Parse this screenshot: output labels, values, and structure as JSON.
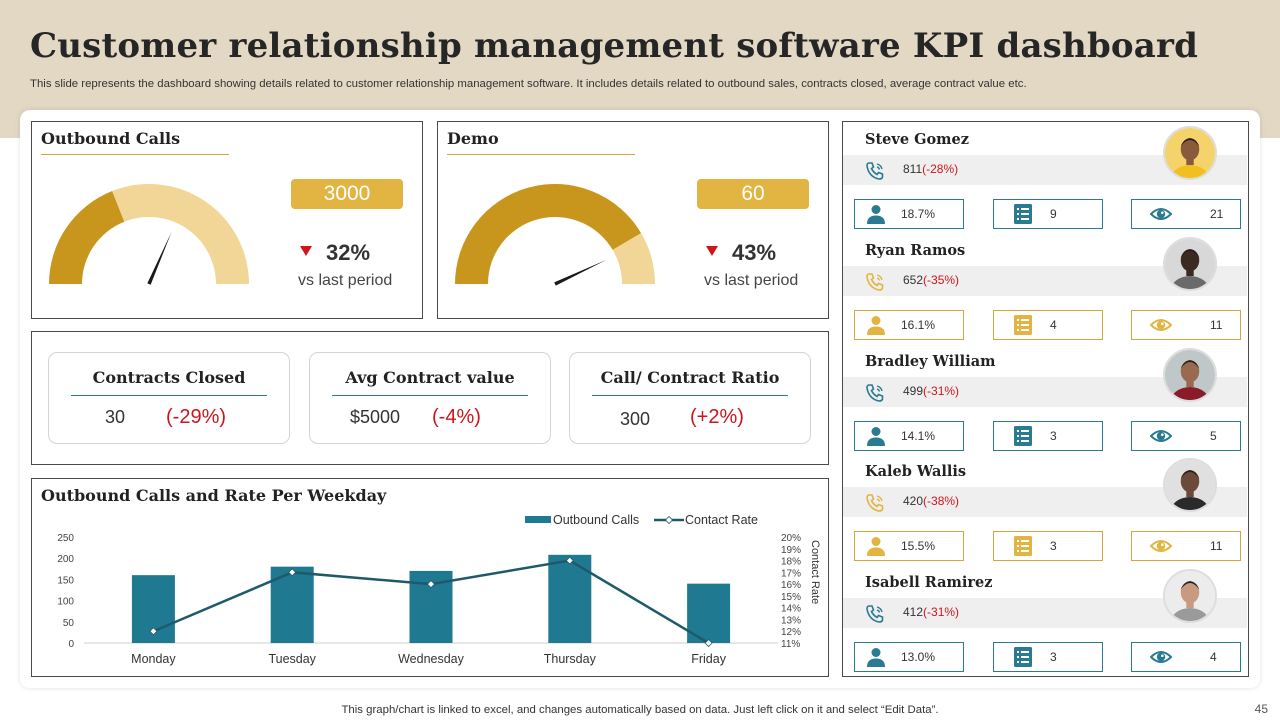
{
  "header": {
    "title": "Customer relationship management software KPI dashboard",
    "subtitle": "This slide represents the dashboard showing details related to customer relationship management software. It includes details related to outbound sales, contracts closed, average contract value etc."
  },
  "gauges": [
    {
      "title": "Outbound Calls",
      "value": "3000",
      "delta": "32%",
      "vs": "vs last period",
      "filled_fraction": 0.38,
      "needle_fraction": 0.63
    },
    {
      "title": "Demo",
      "value": "60",
      "delta": "43%",
      "vs": "vs last period",
      "filled_fraction": 0.83,
      "needle_fraction": 0.86
    }
  ],
  "kpis": [
    {
      "label": "Contracts Closed",
      "value": "30",
      "change": "(-29%)"
    },
    {
      "label": "Avg Contract value",
      "value": "$5000",
      "change": "(-4%)"
    },
    {
      "label": "Call/ Contract Ratio",
      "value": "300",
      "change": "(+2%)"
    }
  ],
  "chart_data": {
    "type": "bar",
    "title": "Outbound Calls and Rate Per Weekday",
    "categories": [
      "Monday",
      "Tuesday",
      "Wednesday",
      "Thursday",
      "Friday"
    ],
    "series": [
      {
        "name": "Outbound Calls",
        "kind": "bar",
        "axis": "left",
        "color": "#1f7a91",
        "values": [
          160,
          180,
          170,
          208,
          140
        ]
      },
      {
        "name": "Contact Rate",
        "kind": "line",
        "axis": "right",
        "color": "#1f5a6b",
        "values": [
          12,
          17,
          16,
          18,
          11
        ]
      }
    ],
    "ylim": [
      0,
      250
    ],
    "yticks": [
      "0",
      "50",
      "100",
      "150",
      "200",
      "250"
    ],
    "y2lim": [
      11,
      20
    ],
    "y2ticks": [
      "11%",
      "12%",
      "13%",
      "14%",
      "15%",
      "16%",
      "17%",
      "18%",
      "19%",
      "20%"
    ],
    "y2label": "Contact Rate",
    "legend_position": "top-right"
  },
  "people": [
    {
      "name": "Steve Gomez",
      "calls": "811",
      "calls_change": "(-28%)",
      "theme": "#2a7a92",
      "stat1": "18.7%",
      "stat2": "9",
      "stat3": "21",
      "avatar_bg": "#f4d36b",
      "avatar_skin": "#8a5a3c",
      "avatar_shirt": "#f0c020"
    },
    {
      "name": "Ryan Ramos",
      "calls": "652",
      "calls_change": "(-35%)",
      "theme": "#e2b441",
      "stat1": "16.1%",
      "stat2": "4",
      "stat3": "11",
      "avatar_bg": "#d8d8d8",
      "avatar_skin": "#3b2a22",
      "avatar_shirt": "#6a6a6a"
    },
    {
      "name": "Bradley William",
      "calls": "499",
      "calls_change": "(-31%)",
      "theme": "#2a7a92",
      "stat1": "14.1%",
      "stat2": "3",
      "stat3": "5",
      "avatar_bg": "#bfc7c9",
      "avatar_skin": "#9a6a50",
      "avatar_shirt": "#8a1c2a"
    },
    {
      "name": "Kaleb Wallis",
      "calls": "420",
      "calls_change": "(-38%)",
      "theme": "#e2b441",
      "stat1": "15.5%",
      "stat2": "3",
      "stat3": "11",
      "avatar_bg": "#e0e0e0",
      "avatar_skin": "#6b4a3a",
      "avatar_shirt": "#2a2a2a"
    },
    {
      "name": "Isabell Ramirez",
      "calls": "412",
      "calls_change": "(-31%)",
      "theme": "#2a7a92",
      "stat1": "13.0%",
      "stat2": "3",
      "stat3": "4",
      "avatar_bg": "#ececec",
      "avatar_skin": "#c89a80",
      "avatar_shirt": "#9a9a9a"
    }
  ],
  "footer": {
    "note": "This graph/chart is linked to excel, and changes automatically based on data. Just left click on it and select “Edit Data”.",
    "page_number": "45"
  },
  "colors": {
    "gold_dark": "#c9961d",
    "gold_light": "#f1d698",
    "teal": "#1f7a91",
    "red": "#d0141a"
  }
}
